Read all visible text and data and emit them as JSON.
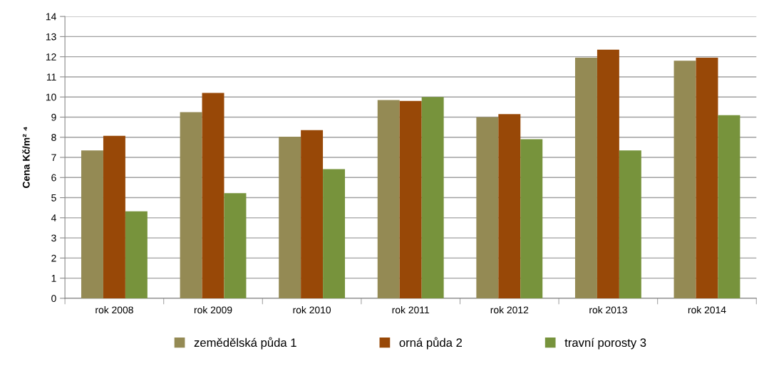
{
  "chart_data": {
    "type": "bar",
    "ylabel": "Cena Kč/m² ⁴",
    "categories": [
      "rok 2008",
      "rok 2009",
      "rok 2010",
      "rok 2011",
      "rok 2012",
      "rok 2013",
      "rok 2014"
    ],
    "series": [
      {
        "name": "zemědělská půda 1",
        "color": "#948a54",
        "values": [
          7.35,
          9.25,
          8.03,
          9.85,
          9.0,
          11.95,
          11.8
        ]
      },
      {
        "name": "orná půda 2",
        "color": "#984807",
        "values": [
          8.07,
          10.2,
          8.35,
          9.8,
          9.15,
          12.35,
          11.95
        ]
      },
      {
        "name": "travní porosty 3",
        "color": "#77933c",
        "values": [
          4.32,
          5.22,
          6.42,
          10.0,
          7.9,
          7.35,
          9.1
        ]
      }
    ],
    "ylim": [
      0,
      14
    ],
    "yticks": [
      0,
      1,
      2,
      3,
      4,
      5,
      6,
      7,
      8,
      9,
      10,
      11,
      12,
      13,
      14
    ],
    "grid": "y",
    "legend": "bottom"
  }
}
